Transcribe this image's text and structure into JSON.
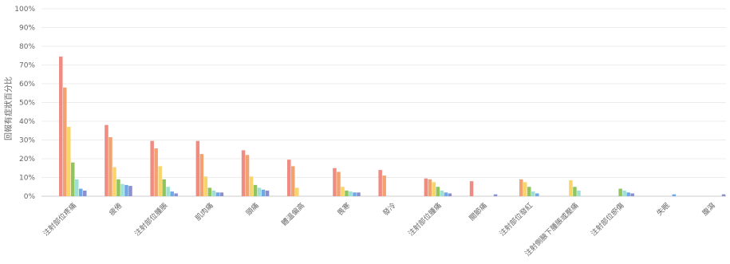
{
  "chart_data": {
    "type": "bar",
    "ylabel": "回報有症狀百分比",
    "ylim": [
      0,
      100
    ],
    "yticks": [
      "0%",
      "10%",
      "20%",
      "30%",
      "40%",
      "50%",
      "60%",
      "70%",
      "80%",
      "90%",
      "100%"
    ],
    "grid": true,
    "categories": [
      "注射部位疼痛",
      "疲倦",
      "注射部位腫脹",
      "肌肉痛",
      "頭痛",
      "體溫偏高",
      "畏寒",
      "發冷",
      "注射部位腫痛",
      "關節痛",
      "注射部位發紅",
      "注射側腋下腫脹或壓痛",
      "注射部位瘀傷",
      "失眠",
      "腹瀉"
    ],
    "series": [
      {
        "color": "#ef8b80",
        "values": [
          74.5,
          38,
          29.5,
          29.5,
          24.5,
          19.5,
          15,
          14,
          9.5,
          8,
          0,
          0,
          0,
          0,
          0
        ]
      },
      {
        "color": "#f2a270",
        "values": [
          58,
          31.5,
          25.5,
          22.5,
          22,
          16,
          13,
          11,
          9,
          0,
          9,
          0,
          0,
          0,
          0
        ]
      },
      {
        "color": "#f9d46b",
        "values": [
          37,
          15.5,
          16,
          10.5,
          10.5,
          4.5,
          5,
          0,
          7.5,
          0,
          7.5,
          8.5,
          0,
          0,
          0
        ]
      },
      {
        "color": "#8fc45f",
        "values": [
          18,
          9,
          9,
          4.5,
          6,
          0,
          3,
          0,
          5,
          0,
          5,
          5,
          4,
          0,
          0
        ]
      },
      {
        "color": "#9fe0d4",
        "values": [
          9,
          6.5,
          5,
          3,
          4.5,
          0,
          2.5,
          0,
          3,
          0,
          2.5,
          3,
          3,
          0,
          0
        ]
      },
      {
        "color": "#6fa8e8",
        "values": [
          4,
          6,
          2.5,
          2,
          3.5,
          0,
          2,
          0,
          2,
          0,
          1.5,
          0,
          2,
          1,
          0
        ]
      },
      {
        "color": "#8c8fcf",
        "values": [
          3,
          5.5,
          1.5,
          2,
          3,
          0,
          2,
          0,
          1.5,
          1,
          0,
          0,
          1.5,
          0,
          1
        ]
      }
    ]
  }
}
